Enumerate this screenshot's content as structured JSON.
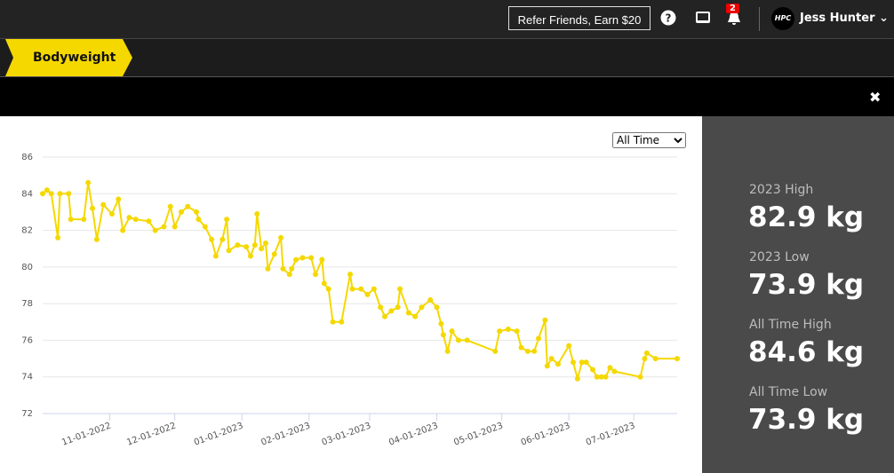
{
  "header": {
    "refer_button": "Refer Friends, Earn $20",
    "notification_count": "2",
    "logo": "HPC",
    "user_name": "Jess Hunter"
  },
  "tab": "Bodyweight",
  "range_select": "All Time",
  "stats": [
    {
      "label": "2023 High",
      "value": "82.9 kg"
    },
    {
      "label": "2023 Low",
      "value": "73.9 kg"
    },
    {
      "label": "All Time High",
      "value": "84.6 kg"
    },
    {
      "label": "All Time Low",
      "value": "73.9 kg"
    }
  ],
  "chart_data": {
    "type": "line",
    "color": "#f5d800",
    "grid": true,
    "xlim": [
      "10-01-2022",
      "07-21-2023"
    ],
    "xticks": [
      "11-01-2022",
      "12-01-2022",
      "01-01-2023",
      "02-01-2023",
      "03-01-2023",
      "04-01-2023",
      "05-01-2023",
      "06-01-2023",
      "07-01-2023"
    ],
    "ylim": [
      72,
      86
    ],
    "yticks": [
      72,
      74,
      76,
      78,
      80,
      82,
      84,
      86
    ],
    "x": [
      "10-01-2022",
      "10-03-2022",
      "10-05-2022",
      "10-08-2022",
      "10-09-2022",
      "10-13-2022",
      "10-14-2022",
      "10-20-2022",
      "10-22-2022",
      "10-24-2022",
      "10-26-2022",
      "10-29-2022",
      "11-02-2022",
      "11-05-2022",
      "11-07-2022",
      "11-10-2022",
      "11-13-2022",
      "11-19-2022",
      "11-22-2022",
      "11-26-2022",
      "11-29-2022",
      "12-01-2022",
      "12-04-2022",
      "12-07-2022",
      "12-11-2022",
      "12-12-2022",
      "12-15-2022",
      "12-18-2022",
      "12-20-2022",
      "12-23-2022",
      "12-25-2022",
      "12-26-2022",
      "12-30-2022",
      "01-03-2023",
      "01-05-2023",
      "01-07-2023",
      "01-08-2023",
      "01-10-2023",
      "01-12-2023",
      "01-13-2023",
      "01-16-2023",
      "01-19-2023",
      "01-20-2023",
      "01-23-2023",
      "01-24-2023",
      "01-26-2023",
      "01-29-2023",
      "02-02-2023",
      "02-04-2023",
      "02-07-2023",
      "02-08-2023",
      "02-10-2023",
      "02-12-2023",
      "02-16-2023",
      "02-20-2023",
      "02-21-2023",
      "02-25-2023",
      "02-28-2023",
      "03-03-2023",
      "03-06-2023",
      "03-08-2023",
      "03-11-2023",
      "03-14-2023",
      "03-15-2023",
      "03-19-2023",
      "03-22-2023",
      "03-25-2023",
      "03-29-2023",
      "04-01-2023",
      "04-03-2023",
      "04-04-2023",
      "04-06-2023",
      "04-08-2023",
      "04-11-2023",
      "04-15-2023",
      "04-28-2023",
      "04-30-2023",
      "05-04-2023",
      "05-08-2023",
      "05-10-2023",
      "05-13-2023",
      "05-16-2023",
      "05-18-2023",
      "05-21-2023",
      "05-22-2023",
      "05-24-2023",
      "05-27-2023",
      "06-01-2023",
      "06-03-2023",
      "06-05-2023",
      "06-07-2023",
      "06-09-2023",
      "06-12-2023",
      "06-14-2023",
      "06-16-2023",
      "06-18-2023",
      "06-20-2023",
      "06-22-2023",
      "07-04-2023",
      "07-06-2023",
      "07-07-2023",
      "07-11-2023",
      "07-21-2023"
    ],
    "values": [
      84.0,
      84.2,
      84.0,
      81.6,
      84.0,
      84.0,
      82.6,
      82.6,
      84.6,
      83.2,
      81.5,
      83.4,
      82.9,
      83.7,
      82.0,
      82.7,
      82.6,
      82.5,
      82.0,
      82.2,
      83.3,
      82.2,
      83.0,
      83.3,
      83.0,
      82.6,
      82.2,
      81.5,
      80.6,
      81.5,
      82.6,
      80.9,
      81.2,
      81.1,
      80.6,
      81.2,
      82.9,
      81.0,
      81.3,
      79.9,
      80.7,
      81.6,
      79.9,
      79.6,
      79.9,
      80.4,
      80.5,
      80.5,
      79.6,
      80.4,
      79.1,
      78.8,
      77.0,
      77.0,
      79.6,
      78.8,
      78.8,
      78.5,
      78.8,
      77.8,
      77.3,
      77.6,
      77.8,
      78.8,
      77.5,
      77.3,
      77.8,
      78.2,
      77.8,
      76.9,
      76.3,
      75.4,
      76.5,
      76.0,
      76.0,
      75.4,
      76.5,
      76.6,
      76.5,
      75.6,
      75.4,
      75.4,
      76.1,
      77.1,
      74.6,
      75.0,
      74.7,
      75.7,
      74.8,
      73.9,
      74.8,
      74.8,
      74.4,
      74.0,
      74.0,
      74.0,
      74.5,
      74.3,
      74.0,
      75.0,
      75.3,
      75.0,
      75.0
    ]
  }
}
